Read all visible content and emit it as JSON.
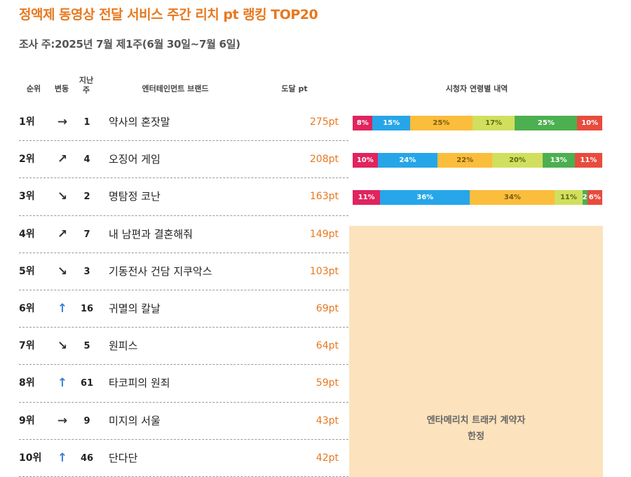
{
  "title": "정액제 동영상 전달 서비스 주간 리치 pt 랭킹 TOP20",
  "subtitle": "조사 주:2025년 7월 제1주(6월 30일~7월 6일)",
  "headers": {
    "rank": "순위",
    "change": "변동",
    "last_week": "지난\n주",
    "brand": "엔터테인먼트 브랜드",
    "pt": "도달 pt",
    "viewer": "시청자 연령별 내역"
  },
  "rows": [
    {
      "rank": "1위",
      "change": "→",
      "change_type": "same",
      "last": "1",
      "brand": "약사의 혼잣말",
      "pt": "275pt"
    },
    {
      "rank": "2위",
      "change": "↗",
      "change_type": "up",
      "last": "4",
      "brand": "오징어 게임",
      "pt": "208pt"
    },
    {
      "rank": "3위",
      "change": "↘",
      "change_type": "down",
      "last": "2",
      "brand": "명탐정 코난",
      "pt": "163pt"
    },
    {
      "rank": "4위",
      "change": "↗",
      "change_type": "up",
      "last": "7",
      "brand": "내 남편과 결혼해줘",
      "pt": "149pt"
    },
    {
      "rank": "5위",
      "change": "↘",
      "change_type": "down",
      "last": "3",
      "brand": "기동전사 건담 지쿠악스",
      "pt": "103pt"
    },
    {
      "rank": "6위",
      "change": "↑",
      "change_type": "rise",
      "last": "16",
      "brand": "귀멸의 칼날",
      "pt": "69pt"
    },
    {
      "rank": "7위",
      "change": "↘",
      "change_type": "down",
      "last": "5",
      "brand": "원피스",
      "pt": "64pt"
    },
    {
      "rank": "8위",
      "change": "↑",
      "change_type": "rise",
      "last": "61",
      "brand": "타코피의 원죄",
      "pt": "59pt"
    },
    {
      "rank": "9위",
      "change": "→",
      "change_type": "same",
      "last": "9",
      "brand": "미지의 서울",
      "pt": "43pt"
    },
    {
      "rank": "10위",
      "change": "↑",
      "change_type": "rise",
      "last": "46",
      "brand": "단다단",
      "pt": "42pt"
    }
  ],
  "age_colors": [
    "#e0245e",
    "#26a6e8",
    "#fbbd3c",
    "#d1df5e",
    "#4caf50",
    "#e84c3d"
  ],
  "age_label_colors": [
    "#ffffff",
    "#ffffff",
    "#7a5a10",
    "#5a6a10",
    "#ffffff",
    "#ffffff"
  ],
  "age_breakdown": [
    {
      "values": [
        8,
        15,
        25,
        17,
        25,
        10
      ],
      "labels": [
        "8%",
        "15%",
        "25%",
        "17%",
        "25%",
        "10%"
      ]
    },
    {
      "values": [
        10,
        24,
        22,
        20,
        13,
        11
      ],
      "labels": [
        "10%",
        "24%",
        "22%",
        "20%",
        "13%",
        "11%"
      ]
    },
    {
      "values": [
        11,
        36,
        34,
        11,
        2,
        6
      ],
      "labels": [
        "11%",
        "36%",
        "34%",
        "11%",
        "2%",
        "6%"
      ]
    }
  ],
  "locked_text": "엔타메리치 트래커 계약자\n한정"
}
